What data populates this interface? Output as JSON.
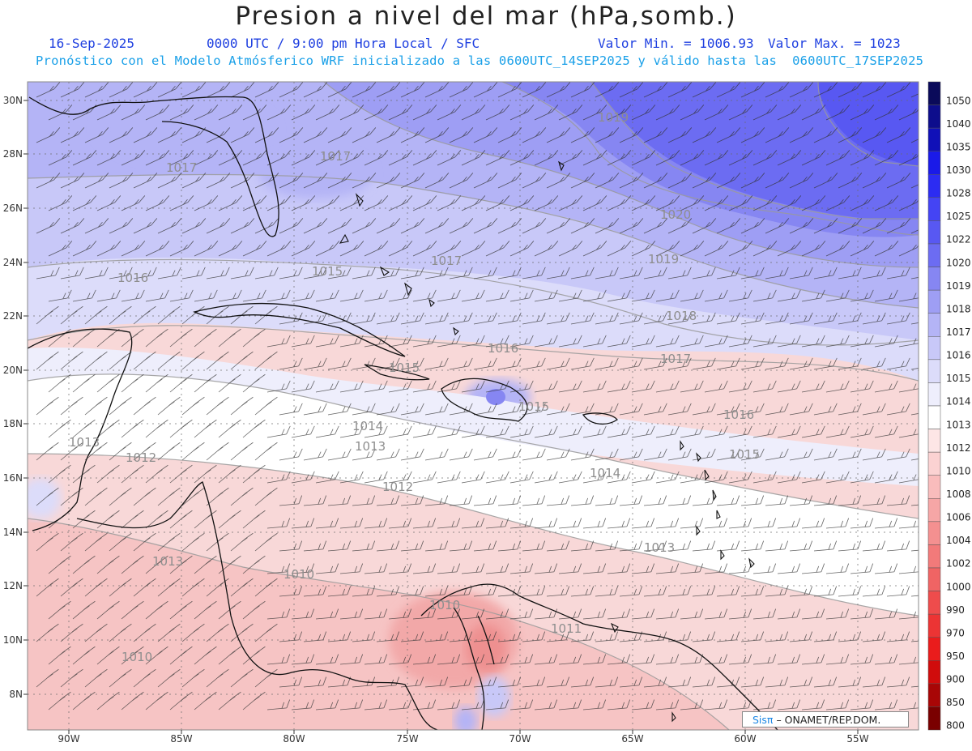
{
  "header": {
    "title": "Presion a nivel del mar (hPa,somb.)",
    "date": "16-Sep-2025",
    "time_label": "0000 UTC / 9:00 pm Hora Local / SFC",
    "min_label": "Valor Min. = 1006.93",
    "max_label": "Valor Max. = 1023",
    "forecast_note": "Pronóstico con el Modelo Atmósferico WRF inicializado a las 0600UTC_14SEP2025 y válido hasta las  0600UTC_17SEP2025"
  },
  "credit": {
    "sis": "Sisπ",
    "org": "– ONAMET/REP.DOM."
  },
  "axes": {
    "lat_labels": [
      "30N",
      "28N",
      "26N",
      "24N",
      "22N",
      "20N",
      "18N",
      "16N",
      "14N",
      "12N",
      "10N",
      "8N"
    ],
    "lon_labels": [
      "90W",
      "85W",
      "80W",
      "75W",
      "70W",
      "65W",
      "60W",
      "55W"
    ]
  },
  "colorbar": {
    "levels": [
      "1050",
      "1040",
      "1035",
      "1030",
      "1028",
      "1025",
      "1022",
      "1020",
      "1019",
      "1018",
      "1017",
      "1016",
      "1015",
      "1014",
      "1013",
      "1012",
      "1010",
      "1008",
      "1006",
      "1004",
      "1002",
      "1000",
      "990",
      "970",
      "950",
      "900",
      "850",
      "800"
    ],
    "colors": [
      "#0a0a5a",
      "#0d0d8c",
      "#1010b8",
      "#1a1ae8",
      "#2c2cf2",
      "#4444f4",
      "#5858f2",
      "#6c6cf2",
      "#8686f2",
      "#9e9ef4",
      "#b4b4f6",
      "#c8c8f8",
      "#dcdcfa",
      "#eeeefc",
      "#ffffff",
      "#fde6e6",
      "#fbd2d2",
      "#f9bcbc",
      "#f6a6a6",
      "#f49090",
      "#f27a7a",
      "#f06464",
      "#ee4c4c",
      "#ec3434",
      "#ea1c1c",
      "#d00c0c",
      "#a80606",
      "#7a0000"
    ]
  },
  "contour_labels": [
    {
      "text": "1019"
    },
    {
      "text": "1017"
    },
    {
      "text": "1017"
    },
    {
      "text": "1020"
    },
    {
      "text": "1019"
    },
    {
      "text": "1017"
    },
    {
      "text": "1016"
    },
    {
      "text": "1015"
    },
    {
      "text": "1018"
    },
    {
      "text": "1016"
    },
    {
      "text": "1017"
    },
    {
      "text": "1015"
    },
    {
      "text": "1015"
    },
    {
      "text": "1016"
    },
    {
      "text": "1014"
    },
    {
      "text": "1013"
    },
    {
      "text": "1013"
    },
    {
      "text": "1015"
    },
    {
      "text": "1012"
    },
    {
      "text": "1014"
    },
    {
      "text": "1012"
    },
    {
      "text": "1013"
    },
    {
      "text": "1013"
    },
    {
      "text": "1010"
    },
    {
      "text": "1010"
    },
    {
      "text": "1011"
    },
    {
      "text": "1010"
    }
  ]
}
